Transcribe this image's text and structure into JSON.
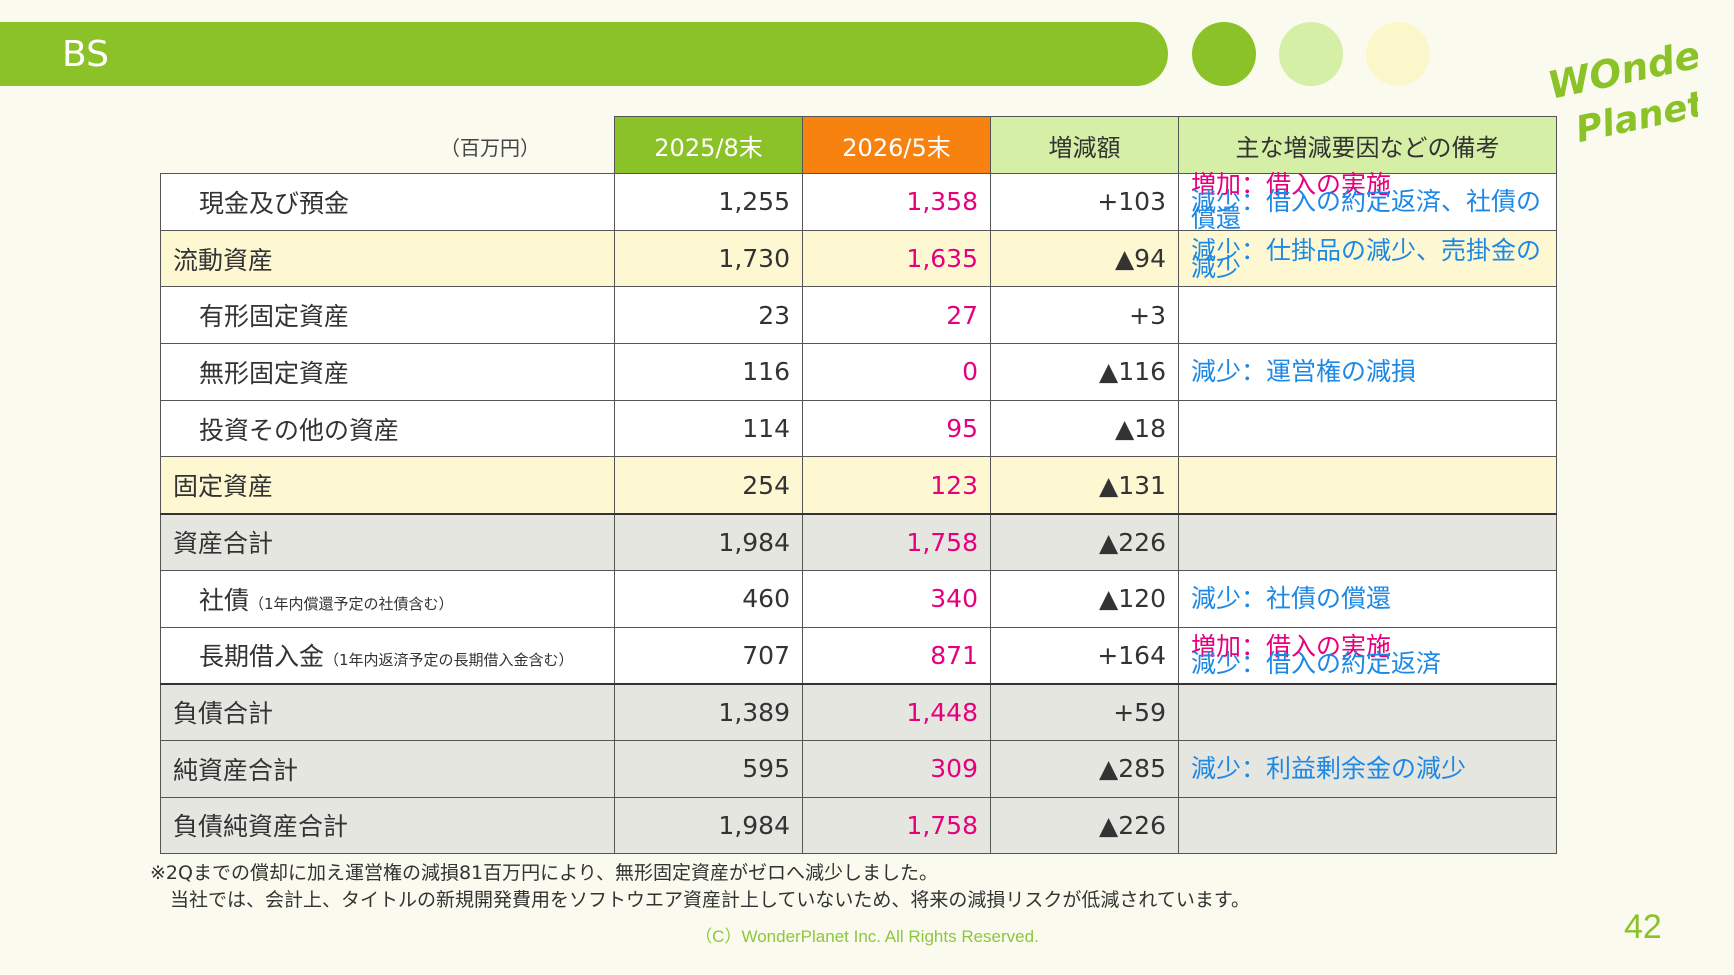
{
  "header": {
    "title": "BS",
    "title_bar_color": "#8ac227",
    "dot_colors": [
      "#8ac227",
      "#d6efa6",
      "#fbf7cb"
    ],
    "logo_text_1": "WOnder",
    "logo_text_2": "Planet",
    "logo_color": "#8ac227"
  },
  "table": {
    "unit": "（百万円）",
    "headers": [
      {
        "label": "2025/8末",
        "bg": "#8ac227",
        "color": "#ffffff"
      },
      {
        "label": "2026/5末",
        "bg": "#f7820f",
        "color": "#ffffff"
      },
      {
        "label": "増減額",
        "bg": "#d6efa6",
        "color": "#333333"
      },
      {
        "label": "主な増減要因などの備考",
        "bg": "#d6efa6",
        "color": "#333333"
      }
    ],
    "rows": [
      {
        "label": "現金及び預金",
        "sub": "",
        "prev": "1,255",
        "cur": "1,358",
        "diff": "+103",
        "inc": "増加：借入の実施",
        "dec": "減少：借入の約定返済、社債の償還"
      },
      {
        "label": "流動資産",
        "sub": "",
        "prev": "1,730",
        "cur": "1,635",
        "diff": "▲94",
        "inc": "",
        "dec": "減少：仕掛品の減少、売掛金の減少"
      },
      {
        "label": "有形固定資産",
        "sub": "",
        "prev": "23",
        "cur": "27",
        "diff": "+3",
        "inc": "",
        "dec": ""
      },
      {
        "label": "無形固定資産",
        "sub": "",
        "prev": "116",
        "cur": "0",
        "diff": "▲116",
        "inc": "",
        "dec": "減少：運営権の減損"
      },
      {
        "label": "投資その他の資産",
        "sub": "",
        "prev": "114",
        "cur": "95",
        "diff": "▲18",
        "inc": "",
        "dec": ""
      },
      {
        "label": "固定資産",
        "sub": "",
        "prev": "254",
        "cur": "123",
        "diff": "▲131",
        "inc": "",
        "dec": ""
      },
      {
        "label": "資産合計",
        "sub": "",
        "prev": "1,984",
        "cur": "1,758",
        "diff": "▲226",
        "inc": "",
        "dec": ""
      },
      {
        "label": "社債",
        "sub": "（1年内償還予定の社債含む）",
        "prev": "460",
        "cur": "340",
        "diff": "▲120",
        "inc": "",
        "dec": "減少：社債の償還"
      },
      {
        "label": "長期借入金",
        "sub": "（1年内返済予定の長期借入金含む）",
        "prev": "707",
        "cur": "871",
        "diff": "+164",
        "inc": "増加：借入の実施",
        "dec": "減少：借入の約定返済"
      },
      {
        "label": "負債合計",
        "sub": "",
        "prev": "1,389",
        "cur": "1,448",
        "diff": "+59",
        "inc": "",
        "dec": ""
      },
      {
        "label": "純資産合計",
        "sub": "",
        "prev": "595",
        "cur": "309",
        "diff": "▲285",
        "inc": "",
        "dec": "減少：利益剰余金の減少"
      },
      {
        "label": "負債純資産合計",
        "sub": "",
        "prev": "1,984",
        "cur": "1,758",
        "diff": "▲226",
        "inc": "",
        "dec": ""
      }
    ]
  },
  "footnote": {
    "line1": "※2Qまでの償却に加え運営権の減損81百万円により、無形固定資産がゼロへ減少しました。",
    "line2": "当社では、会計上、タイトルの新規開発費用をソフトウエア資産計上していないため、将来の減損リスクが低減されています。"
  },
  "footer": {
    "copyright": "（C）WonderPlanet Inc.  All Rights Reserved.",
    "page_number": "42"
  }
}
